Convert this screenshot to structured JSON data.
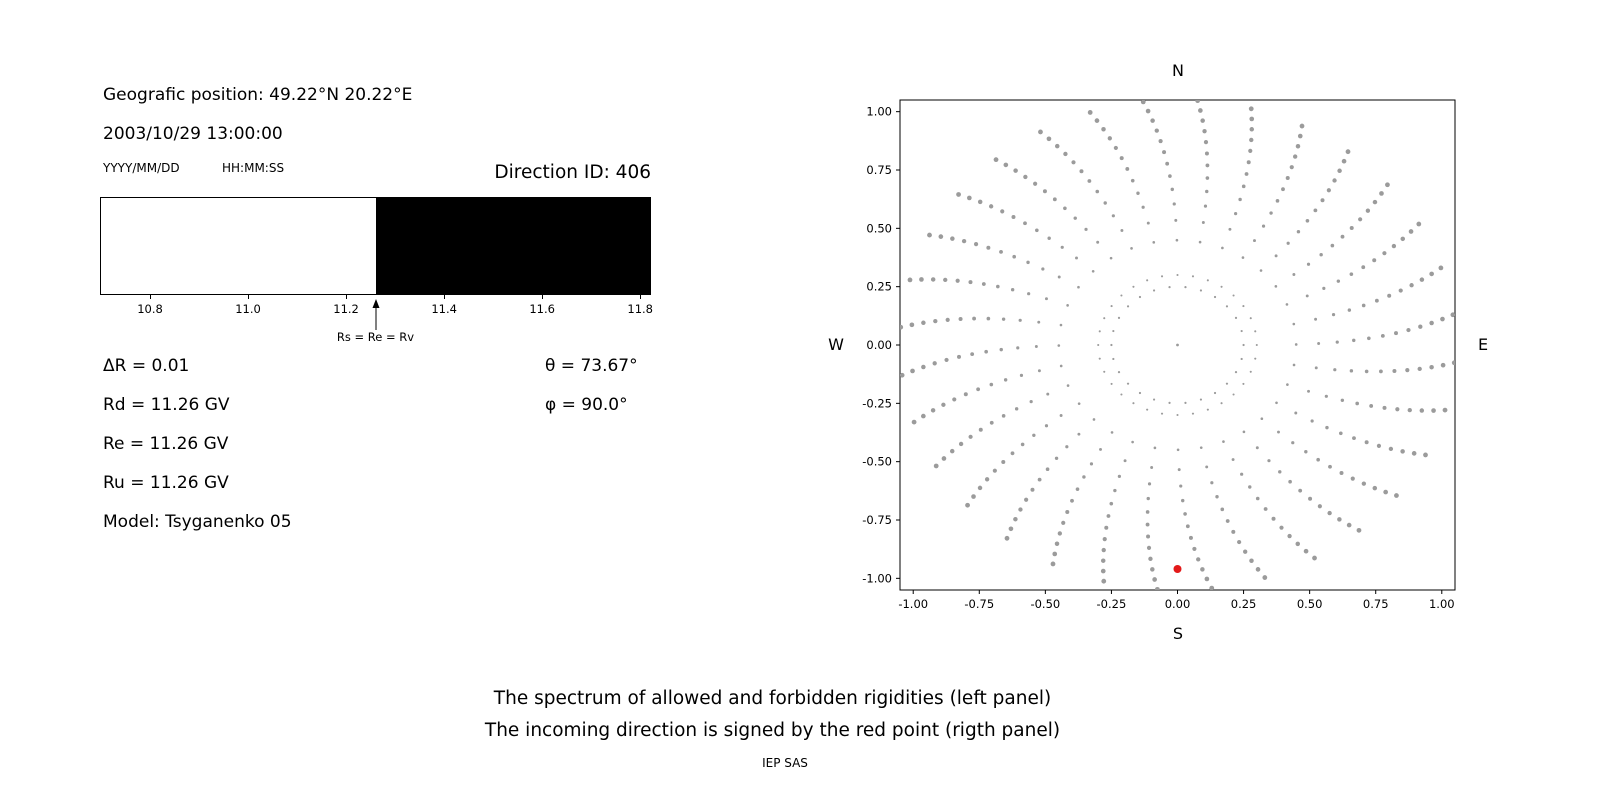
{
  "header": {
    "position": "Geografic position: 49.22°N 20.22°E",
    "datetime": "2003/10/29 13:00:00",
    "date_format_hint": "YYYY/MM/DD",
    "time_format_hint": "HH:MM:SS",
    "direction_id": "Direction ID: 406"
  },
  "left_panel": {
    "arrow_label": "Rs = Re = Rv",
    "params": [
      "ΔR = 0.01",
      "Rd = 11.26 GV",
      "Re = 11.26 GV",
      "Ru = 11.26 GV",
      "Model: Tsyganenko 05"
    ],
    "angles": [
      "θ = 73.67°",
      "φ = 90.0°"
    ]
  },
  "right_panel": {
    "compass": {
      "n": "N",
      "s": "S",
      "e": "E",
      "w": "W"
    }
  },
  "captions": {
    "line1": "The spectrum of allowed and forbidden rigidities (left panel)",
    "line2": "The incoming direction is signed by the red point (rigth panel)",
    "credit": "IEP SAS"
  },
  "chart_data": [
    {
      "type": "bar",
      "title": "Spectrum of allowed (white) and forbidden (black) rigidities",
      "x_range": [
        10.7,
        11.82
      ],
      "x_ticks": [
        10.8,
        11.0,
        11.2,
        11.4,
        11.6,
        11.8
      ],
      "x_tick_labels": [
        "10.8",
        "11.0",
        "11.2",
        "11.4",
        "11.6",
        "11.8"
      ],
      "segments": [
        {
          "name": "allowed",
          "from": 10.7,
          "to": 11.26,
          "color": "#ffffff"
        },
        {
          "name": "forbidden",
          "from": 11.26,
          "to": 11.82,
          "color": "#000000"
        }
      ],
      "marker": {
        "x": 11.26,
        "label": "Rs = Re = Rv"
      },
      "values": {
        "deltaR": 0.01,
        "Rd": 11.26,
        "Re": 11.26,
        "Ru": 11.26,
        "theta_deg": 73.67,
        "phi_deg": 90.0,
        "model": "Tsyganenko 05",
        "direction_id": 406
      }
    },
    {
      "type": "scatter",
      "xlim": [
        -1.05,
        1.05
      ],
      "ylim": [
        -1.05,
        1.05
      ],
      "x_ticks": [
        -1.0,
        -0.75,
        -0.5,
        -0.25,
        0.0,
        0.25,
        0.5,
        0.75,
        1.0
      ],
      "y_ticks": [
        1.0,
        0.75,
        0.5,
        0.25,
        0.0,
        -0.25,
        -0.5,
        -0.75,
        -1.0
      ],
      "x_tick_labels": [
        "-1.00",
        "-0.75",
        "-0.50",
        "-0.25",
        "0.00",
        "0.25",
        "0.50",
        "0.75",
        "1.00"
      ],
      "y_tick_labels": [
        "1.00",
        "0.75",
        "0.50",
        "0.25",
        "0.00",
        "-0.25",
        "-0.50",
        "-0.75",
        "-1.00"
      ],
      "compass_labels": {
        "top": "N",
        "bottom": "S",
        "left": "W",
        "right": "E"
      },
      "grid": false,
      "series": [
        {
          "name": "allowed-direction-dots",
          "color": "#9b9b9b",
          "pattern": {
            "kind": "radial-spokes",
            "spokes": 32,
            "angle_step_deg": 11.25,
            "r_start": 0.3,
            "r_end": 1.05,
            "dots_per_spoke": 13,
            "spacing_exponent": 0.65,
            "curvature_rad": 0.22,
            "inner_ring_radius": 0.25,
            "inner_ring_dots": 26,
            "center_dot": [
              0,
              0
            ]
          }
        },
        {
          "name": "incoming-direction",
          "color": "#e31a1a",
          "points": [
            [
              0.0,
              -0.96
            ]
          ]
        }
      ]
    }
  ]
}
